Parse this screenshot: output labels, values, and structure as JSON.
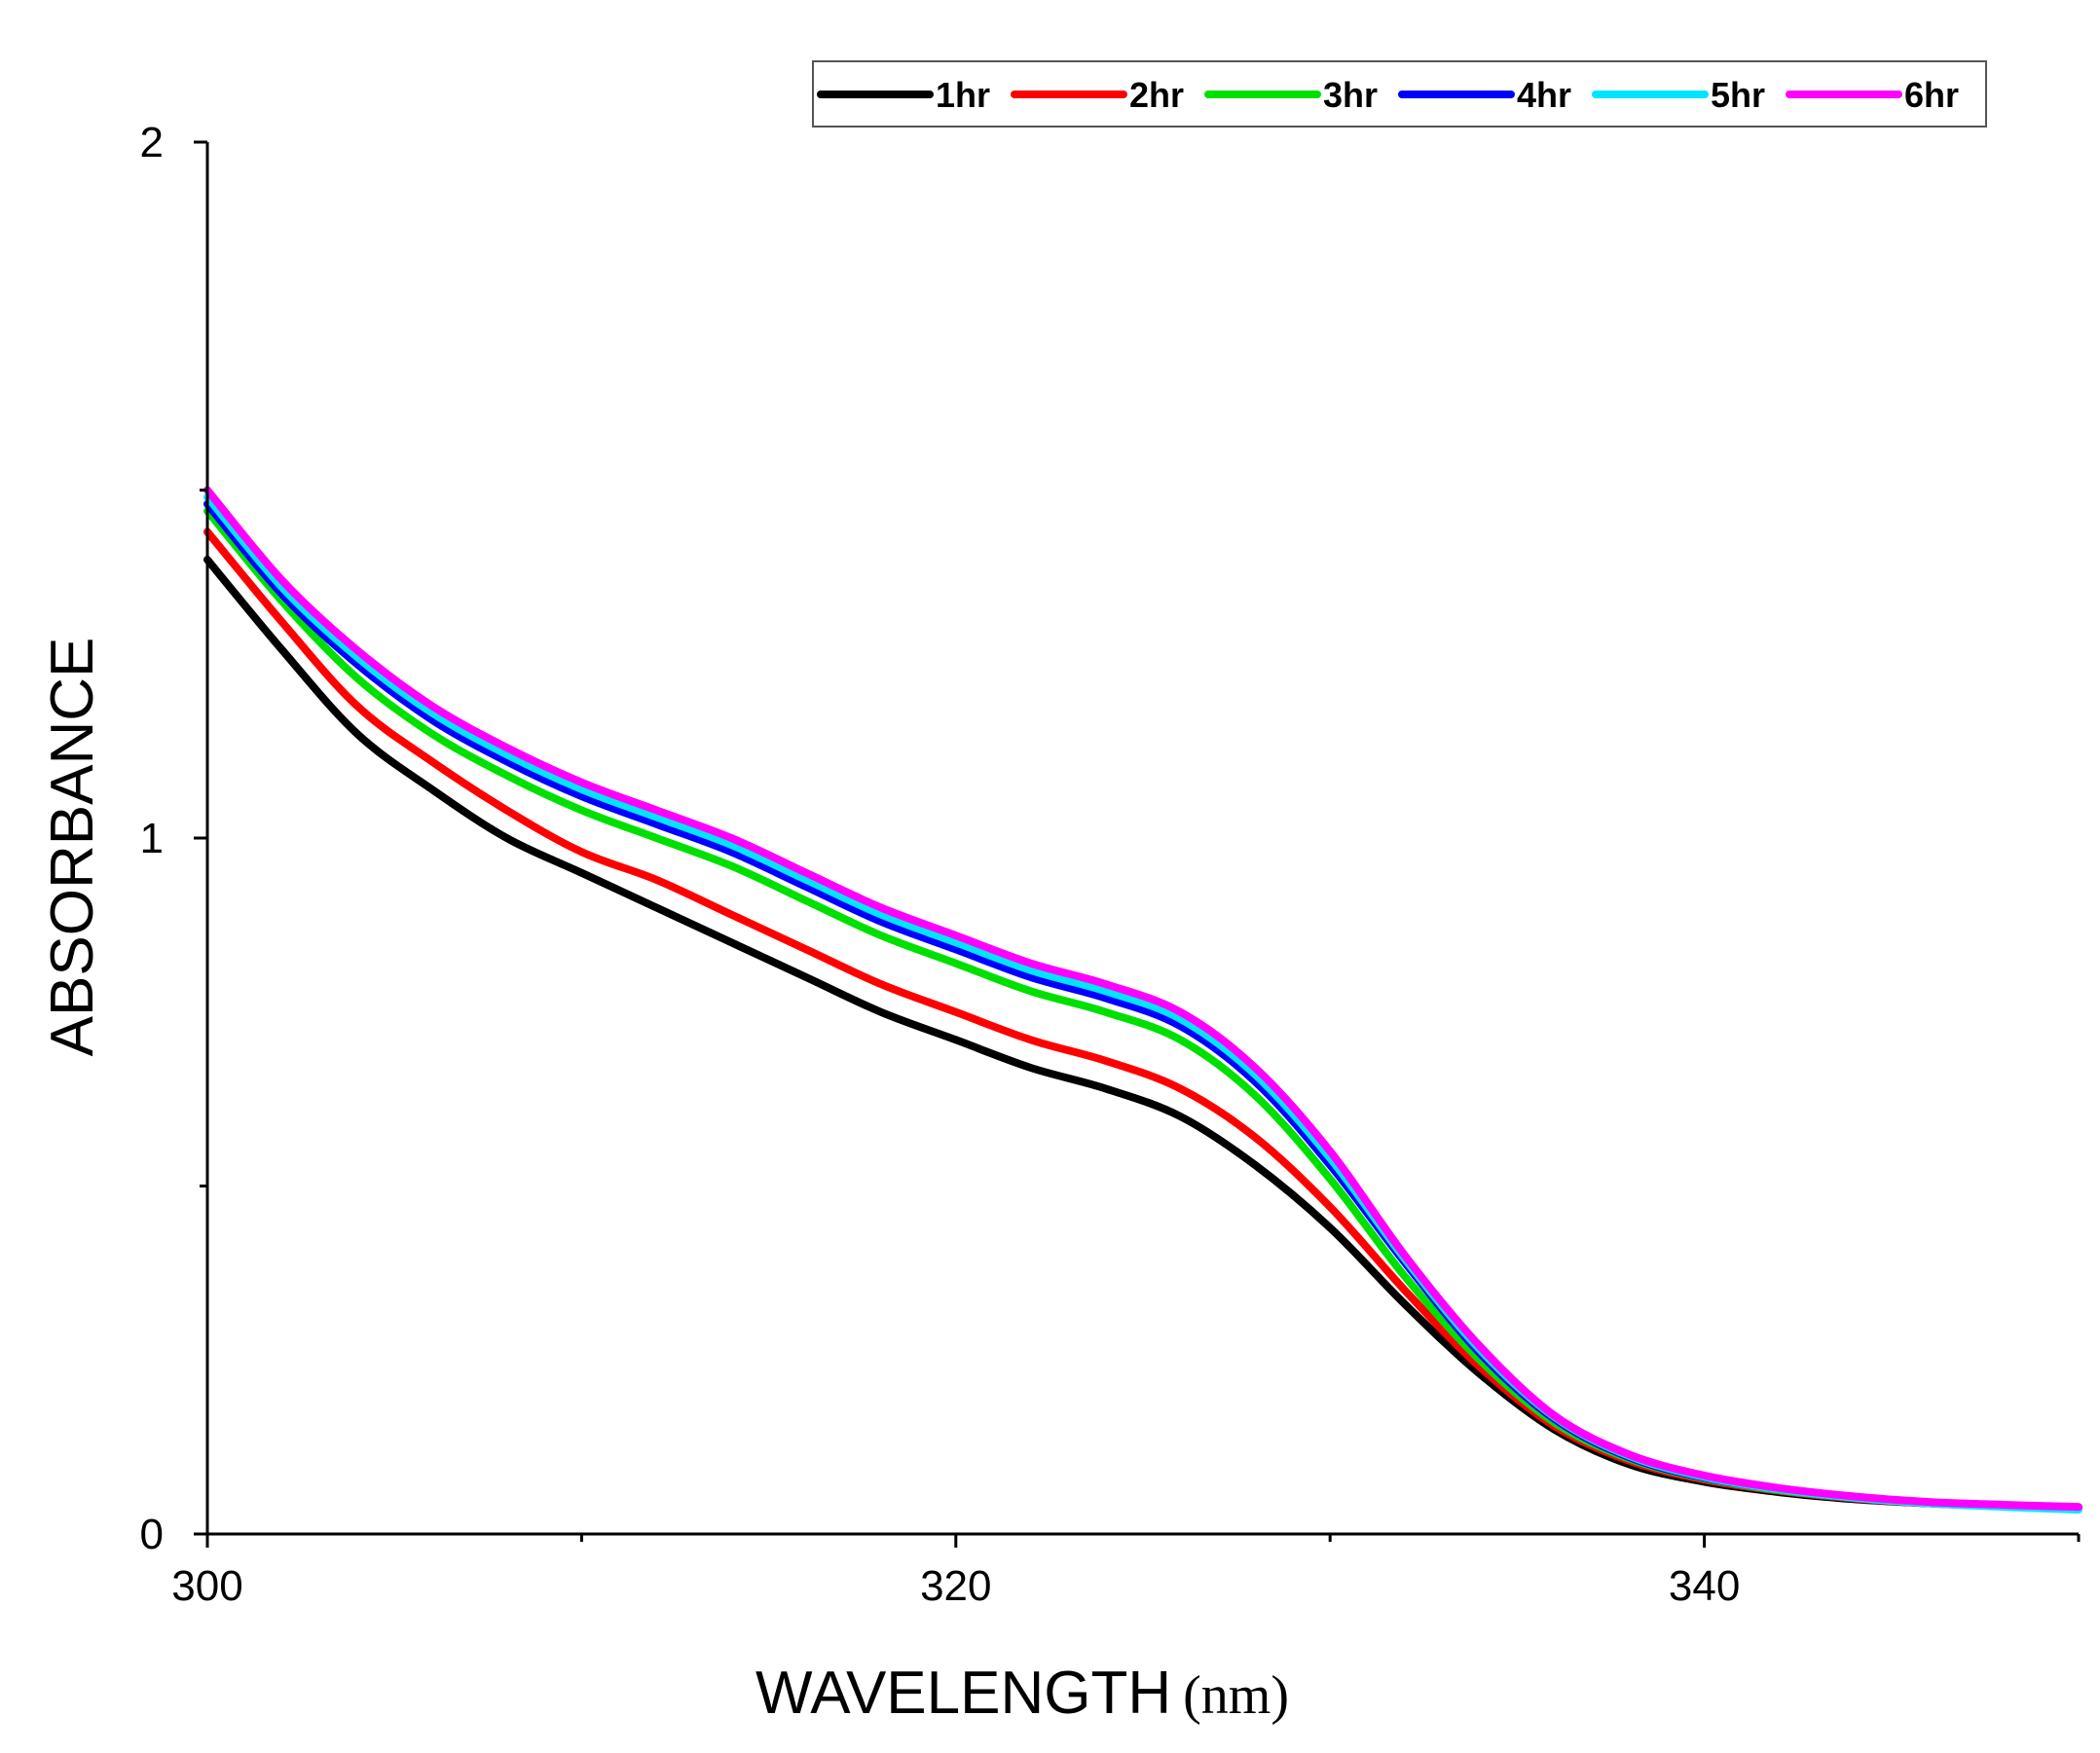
{
  "chart_data": {
    "type": "line",
    "title": "",
    "xlabel": "WAVELENGTH",
    "xlabel_unit": "(nm)",
    "ylabel": "ABSORBANCE",
    "xlim": [
      300,
      350
    ],
    "ylim": [
      0,
      2
    ],
    "x_ticks": [
      300,
      320,
      340
    ],
    "x_minor_ticks": [
      310,
      330,
      350
    ],
    "y_ticks": [
      0,
      1,
      2
    ],
    "y_minor_ticks": [
      0.5,
      1.5
    ],
    "grid": false,
    "legend_position": "top-right",
    "x": [
      300,
      302,
      304,
      306,
      308,
      310,
      312,
      314,
      316,
      318,
      320,
      322,
      324,
      326,
      328,
      330,
      332,
      334,
      336,
      338,
      340,
      342,
      344,
      346,
      348,
      350
    ],
    "series": [
      {
        "name": "1hr",
        "color": "#000000",
        "values": [
          1.4,
          1.27,
          1.15,
          1.07,
          1.0,
          0.95,
          0.9,
          0.85,
          0.8,
          0.75,
          0.71,
          0.67,
          0.64,
          0.6,
          0.53,
          0.44,
          0.33,
          0.23,
          0.15,
          0.1,
          0.075,
          0.06,
          0.05,
          0.044,
          0.04,
          0.038
        ]
      },
      {
        "name": "2hr",
        "color": "#ff0000",
        "values": [
          1.44,
          1.31,
          1.19,
          1.11,
          1.04,
          0.98,
          0.94,
          0.89,
          0.84,
          0.79,
          0.75,
          0.71,
          0.68,
          0.64,
          0.57,
          0.47,
          0.35,
          0.24,
          0.155,
          0.105,
          0.078,
          0.062,
          0.051,
          0.044,
          0.04,
          0.038
        ]
      },
      {
        "name": "3hr",
        "color": "#00e000",
        "values": [
          1.47,
          1.34,
          1.23,
          1.15,
          1.09,
          1.04,
          1.0,
          0.96,
          0.91,
          0.86,
          0.82,
          0.78,
          0.75,
          0.71,
          0.63,
          0.51,
          0.37,
          0.25,
          0.16,
          0.108,
          0.08,
          0.063,
          0.052,
          0.045,
          0.041,
          0.038
        ]
      },
      {
        "name": "4hr",
        "color": "#0000ff",
        "values": [
          1.48,
          1.35,
          1.25,
          1.17,
          1.11,
          1.06,
          1.02,
          0.98,
          0.93,
          0.88,
          0.84,
          0.8,
          0.77,
          0.73,
          0.65,
          0.53,
          0.39,
          0.26,
          0.165,
          0.11,
          0.081,
          0.064,
          0.052,
          0.045,
          0.041,
          0.038
        ]
      },
      {
        "name": "5hr",
        "color": "#00e5ff",
        "values": [
          1.49,
          1.36,
          1.26,
          1.18,
          1.12,
          1.07,
          1.03,
          0.99,
          0.94,
          0.89,
          0.85,
          0.81,
          0.78,
          0.74,
          0.66,
          0.54,
          0.395,
          0.265,
          0.168,
          0.112,
          0.082,
          0.064,
          0.052,
          0.044,
          0.039,
          0.035
        ]
      },
      {
        "name": "6hr",
        "color": "#ff00ff",
        "values": [
          1.5,
          1.37,
          1.27,
          1.19,
          1.13,
          1.08,
          1.04,
          1.0,
          0.95,
          0.9,
          0.86,
          0.82,
          0.79,
          0.75,
          0.67,
          0.55,
          0.4,
          0.27,
          0.17,
          0.114,
          0.084,
          0.066,
          0.054,
          0.046,
          0.042,
          0.039
        ]
      }
    ]
  }
}
